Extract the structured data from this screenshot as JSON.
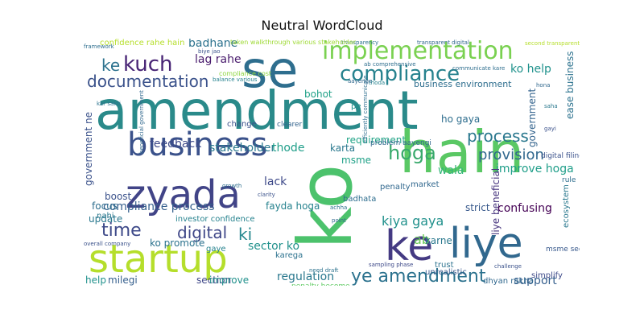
{
  "chart_data": {
    "type": "wordcloud",
    "title": "Neutral WordCloud",
    "words": [
      {
        "text": "amendment",
        "color": "#2a8a8a"
      },
      {
        "text": "hain",
        "color": "#5ac864"
      },
      {
        "text": "ko",
        "color": "#4cc26c"
      },
      {
        "text": "se",
        "color": "#2e6e8e"
      },
      {
        "text": "business",
        "color": "#3b528b"
      },
      {
        "text": "liye",
        "color": "#31688e"
      },
      {
        "text": "zyada",
        "color": "#414487"
      },
      {
        "text": "ke",
        "color": "#443a83"
      },
      {
        "text": "startup",
        "color": "#b5de2b"
      },
      {
        "text": "implementation",
        "color": "#7ad151"
      },
      {
        "text": "compliance",
        "color": "#26828e"
      },
      {
        "text": "kuch",
        "color": "#482475"
      },
      {
        "text": "hoga",
        "color": "#38a96b"
      },
      {
        "text": "time",
        "color": "#3e4a89"
      },
      {
        "text": "ye amendment",
        "color": "#2c728e"
      },
      {
        "text": "documentation",
        "color": "#3b528b"
      },
      {
        "text": "digital",
        "color": "#3f4788"
      },
      {
        "text": "ki",
        "color": "#24878e"
      },
      {
        "text": "process",
        "color": "#2a788e"
      },
      {
        "text": "provision",
        "color": "#31688e"
      },
      {
        "text": "kiya gaya",
        "color": "#21918c"
      },
      {
        "text": "compliance process",
        "color": "#355f8d"
      },
      {
        "text": "ab",
        "color": "#6ccd5a"
      },
      {
        "text": "ke",
        "color": "#2c728e"
      },
      {
        "text": "confusing",
        "color": "#440154"
      },
      {
        "text": "improve hoga",
        "color": "#1f9e89"
      },
      {
        "text": "regulation",
        "color": "#2a788e"
      },
      {
        "text": "support",
        "color": "#355f8d"
      },
      {
        "text": "badhane",
        "color": "#2c728e"
      },
      {
        "text": "lag rahe",
        "color": "#481a6c"
      },
      {
        "text": "ko help",
        "color": "#20928c"
      },
      {
        "text": "bohot",
        "color": "#1fa187"
      },
      {
        "text": "business environment",
        "color": "#2e6e8e"
      },
      {
        "text": "government ne",
        "color": "#3b528b"
      },
      {
        "text": "feedback",
        "color": "#3e4a89"
      },
      {
        "text": "stakeholder",
        "color": "#2a788e"
      },
      {
        "text": "thode",
        "color": "#1f9e89"
      },
      {
        "text": "requirement",
        "color": "#20a386"
      },
      {
        "text": "ho gaya",
        "color": "#2e6e8e"
      },
      {
        "text": "wala",
        "color": "#35b779"
      },
      {
        "text": "sector ko",
        "color": "#21918c"
      },
      {
        "text": "msme",
        "color": "#1fa187"
      },
      {
        "text": "lack",
        "color": "#3e4a89"
      },
      {
        "text": "karta",
        "color": "#2a788e"
      },
      {
        "text": "strict",
        "color": "#38598c"
      },
      {
        "text": "section",
        "color": "#3f4788"
      },
      {
        "text": "improve",
        "color": "#21918c"
      },
      {
        "text": "ease business",
        "color": "#2c728e"
      },
      {
        "text": "government",
        "color": "#33638d"
      },
      {
        "text": "confidence rahe hain",
        "color": "#b5de2b"
      },
      {
        "text": "liye beneficial",
        "color": "#46337e"
      },
      {
        "text": "karne",
        "color": "#2a788e"
      },
      {
        "text": "fayda hoga",
        "color": "#26828e"
      },
      {
        "text": "boost",
        "color": "#3b528b"
      },
      {
        "text": "focus",
        "color": "#2e6e8e"
      },
      {
        "text": "update",
        "color": "#2a788e"
      },
      {
        "text": "ko promote",
        "color": "#2c728e"
      },
      {
        "text": "help",
        "color": "#21918c"
      },
      {
        "text": "milegi",
        "color": "#355f8d"
      },
      {
        "text": "investor confidence",
        "color": "#26828e"
      },
      {
        "text": "badhata",
        "color": "#2e6e8e"
      },
      {
        "text": "msme sector",
        "color": "#38598c"
      },
      {
        "text": "trust",
        "color": "#2c728e"
      },
      {
        "text": "simplify",
        "color": "#3e4a89"
      },
      {
        "text": "dhyan rakha",
        "color": "#31688e"
      },
      {
        "text": "unrealistic",
        "color": "#38598c"
      },
      {
        "text": "penalty",
        "color": "#31688e"
      },
      {
        "text": "digital filing",
        "color": "#3b528b"
      },
      {
        "text": "ecosystem",
        "color": "#2a788e"
      },
      {
        "text": "rule",
        "color": "#2e6e8e"
      },
      {
        "text": "market",
        "color": "#31688e"
      },
      {
        "text": "change",
        "color": "#3b528b"
      },
      {
        "text": "clearer",
        "color": "#33638d"
      },
      {
        "text": "karega",
        "color": "#2c728e"
      },
      {
        "text": "gaye",
        "color": "#26828e"
      },
      {
        "text": "nahi",
        "color": "#2a788e"
      },
      {
        "text": "pe",
        "color": "#21918c"
      },
      {
        "text": "problem aayengi",
        "color": "#31688e"
      },
      {
        "text": "transparency",
        "color": "#2c728e"
      },
      {
        "text": "transparent digital",
        "color": "#31688e"
      },
      {
        "text": "ab comprehensive",
        "color": "#2e6e8e"
      },
      {
        "text": "communicate kare",
        "color": "#2e6e8e"
      },
      {
        "text": "challenge",
        "color": "#3b528b"
      },
      {
        "text": "penalty become",
        "color": "#5ec962"
      },
      {
        "text": "overall company",
        "color": "#3b528b"
      },
      {
        "text": "sampling phase",
        "color": "#3e4a89"
      },
      {
        "text": "need draft",
        "color": "#2c728e"
      },
      {
        "text": "efficiently communicate",
        "color": "#2e6e8e"
      },
      {
        "text": "compliance cost",
        "color": "#90d743"
      },
      {
        "text": "balance various",
        "color": "#26828e"
      },
      {
        "text": "beneficial government",
        "color": "#31688e"
      },
      {
        "text": "growth",
        "color": "#2e6e8e"
      },
      {
        "text": "clarity",
        "color": "#3b528b"
      },
      {
        "text": "point",
        "color": "#31688e"
      },
      {
        "text": "achha",
        "color": "#2c728e"
      },
      {
        "text": "thoda",
        "color": "#26828e"
      },
      {
        "text": "aayenge",
        "color": "#31688e"
      },
      {
        "text": "taken walkthrough various stakeholder",
        "color": "#a0da39"
      },
      {
        "text": "second transparent",
        "color": "#b5de2b"
      },
      {
        "text": "framework",
        "color": "#2e6e8e"
      },
      {
        "text": "biye jao",
        "color": "#3b528b"
      },
      {
        "text": "kar sakti",
        "color": "#2c728e"
      },
      {
        "text": "hona",
        "color": "#31688e"
      },
      {
        "text": "saha",
        "color": "#2a788e"
      },
      {
        "text": "gayi",
        "color": "#3b528b"
      }
    ]
  }
}
